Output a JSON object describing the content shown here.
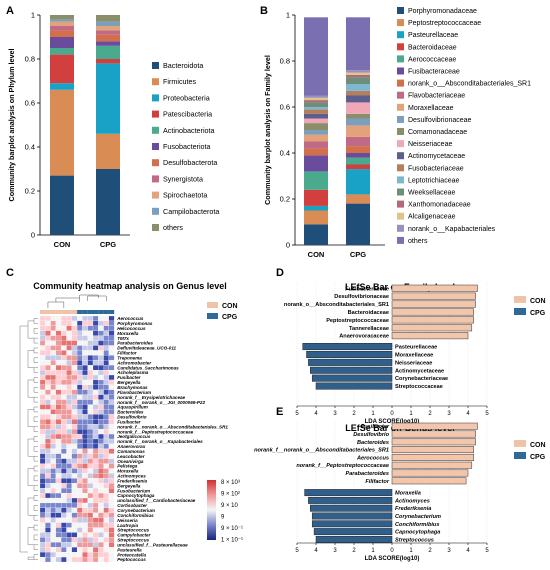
{
  "panels": {
    "a": "A",
    "b": "B",
    "c": "C",
    "d": "D",
    "e": "E"
  },
  "colors": {
    "Bacteroidota": "#1f4e79",
    "Firmicutes": "#d98c54",
    "Proteobacteria": "#1aa2c6",
    "Patescibacteria": "#d23f3f",
    "Actinobacteriota": "#4aaa8e",
    "Fusobacteriota": "#6a4b9c",
    "Desulfobacterota": "#d36f4a",
    "Synergistota": "#c06a88",
    "Spirochaetota": "#e2a27a",
    "Campilobacterota": "#7d9fbe",
    "others": "#8a8f6a",
    "lda_con": "#f3c6ac",
    "lda_cpg": "#2f5f8a",
    "legend_con": "#f0c2a6",
    "legend_cpg": "#2b6a9a"
  },
  "chart_data": [
    {
      "id": "A",
      "type": "bar",
      "ylabel": "Community barplot analysis on Phylum level",
      "categories": [
        "CON",
        "CPG"
      ],
      "ylim": [
        0,
        1
      ],
      "yticks": [
        "0",
        "0.2",
        "0.4",
        "0.6",
        "0.8",
        "1"
      ],
      "series": [
        {
          "name": "Bacteroidota",
          "values": [
            0.27,
            0.3
          ]
        },
        {
          "name": "Firmicutes",
          "values": [
            0.39,
            0.16
          ]
        },
        {
          "name": "Proteobacteria",
          "values": [
            0.03,
            0.32
          ]
        },
        {
          "name": "Patescibacteria",
          "values": [
            0.13,
            0.02
          ]
        },
        {
          "name": "Actinobacteriota",
          "values": [
            0.03,
            0.06
          ]
        },
        {
          "name": "Fusobacteriota",
          "values": [
            0.05,
            0.02
          ]
        },
        {
          "name": "Desulfobacterota",
          "values": [
            0.03,
            0.03
          ]
        },
        {
          "name": "Synergistota",
          "values": [
            0.02,
            0.02
          ]
        },
        {
          "name": "Spirochaetota",
          "values": [
            0.02,
            0.02
          ]
        },
        {
          "name": "Campilobacterota",
          "values": [
            0.01,
            0.02
          ]
        },
        {
          "name": "others",
          "values": [
            0.02,
            0.03
          ]
        }
      ]
    },
    {
      "id": "B",
      "type": "bar",
      "ylabel": "Community barplot analysis on Family level",
      "categories": [
        "CON",
        "CPG"
      ],
      "ylim": [
        0,
        1
      ],
      "yticks": [
        "0",
        "0.2",
        "0.4",
        "0.6",
        "0.8",
        "1"
      ],
      "series": [
        {
          "name": "Porphyromonadaceae",
          "values": [
            0.09,
            0.18
          ]
        },
        {
          "name": "Peptostreptococcaceae",
          "values": [
            0.06,
            0.04
          ]
        },
        {
          "name": "Pasteurellaceae",
          "values": [
            0.02,
            0.11
          ]
        },
        {
          "name": "Bacteroidaceae",
          "values": [
            0.07,
            0.02
          ]
        },
        {
          "name": "Aerococcaceae",
          "values": [
            0.08,
            0.03
          ]
        },
        {
          "name": "Fusibacteraceae",
          "values": [
            0.07,
            0.02
          ]
        },
        {
          "name": "norank_o__Absconditabacteriales_SR1",
          "values": [
            0.03,
            0.03
          ]
        },
        {
          "name": "Flavobacteriaceae",
          "values": [
            0.03,
            0.04
          ]
        },
        {
          "name": "Moraxellaceae",
          "values": [
            0.03,
            0.05
          ]
        },
        {
          "name": "Desulfovibrionaceae",
          "values": [
            0.02,
            0.03
          ]
        },
        {
          "name": "Comamonadaceae",
          "values": [
            0.03,
            0.02
          ]
        },
        {
          "name": "Neisseriaceae",
          "values": [
            0.02,
            0.05
          ]
        },
        {
          "name": "Actinomycetaceae",
          "values": [
            0.02,
            0.03
          ]
        },
        {
          "name": "Fusobacteriaceae",
          "values": [
            0.02,
            0.02
          ]
        },
        {
          "name": "Leptotrichiaceae",
          "values": [
            0.01,
            0.03
          ]
        },
        {
          "name": "Weeksellaceae",
          "values": [
            0.02,
            0.03
          ]
        },
        {
          "name": "Xanthomonadaceae",
          "values": [
            0.01,
            0.01
          ]
        },
        {
          "name": "Alcaligenaceae",
          "values": [
            0.01,
            0.01
          ]
        },
        {
          "name": "norank_o__Kapabacteriales",
          "values": [
            0.01,
            0.01
          ]
        },
        {
          "name": "others",
          "values": [
            0.34,
            0.23
          ]
        }
      ],
      "colors": [
        "#1f4e79",
        "#d98c54",
        "#1aa2c6",
        "#d23f3f",
        "#4aaa8e",
        "#6a4b9c",
        "#d36f4a",
        "#c06a88",
        "#e2a27a",
        "#7d9fbe",
        "#8a8f6a",
        "#f0a8b8",
        "#5d5d8e",
        "#b47f5c",
        "#7db8d0",
        "#6d8f7a",
        "#b06a7a",
        "#e0c58a",
        "#9a8fbe",
        "#7a6fb0"
      ]
    },
    {
      "id": "C",
      "type": "heatmap",
      "title": "Community heatmap analysis on Genus level",
      "groups": [
        "CON",
        "CPG"
      ],
      "scale_labels": [
        "8 × 10³",
        "9 × 10²",
        "9 × 10",
        "9",
        "9 × 10⁻¹",
        "1 × 10⁻¹"
      ],
      "rows": [
        "Aerococcus",
        "Porphyromonas",
        "Helcococcus",
        "Moraxella",
        "TM7x",
        "Parabacteroides",
        "Defluviitaleaceae_UCG-011",
        "Filifactor",
        "Treponema",
        "Achromobacter",
        "Candidatus_Saccharimonas",
        "Acholeplasma",
        "Fusibacter",
        "Bergeyella",
        "Brachymonas",
        "Flavobacterium",
        "norank_f__Erysipelotrichaceae",
        "norank_f__norank_o__JGI_0000069-P22",
        "Aquaspirillum",
        "Bacteroides",
        "Desulfovibrio",
        "Fusibacter",
        "norank_f__norank_o__Absconditabacteriales_SR1",
        "norank_f__Peptostreptococcaceae",
        "Jeotgalicoccus",
        "norank_f__norank_o__Kapabacteriales",
        "Anaerovorax",
        "Comamonas",
        "Leucobacter",
        "Oceanivirga",
        "Pelistega",
        "Moraxella",
        "Actinomyces",
        "Frederiksenia",
        "Bergeyella",
        "Fusobacterium",
        "Capnocytophaga",
        "unclassified_f__Cardiobacteriaceae",
        "Cortisobacter",
        "Corynebacterium",
        "Conchiformibius",
        "Neisseria",
        "Lautropia",
        "Streptococcus",
        "Campylobacter",
        "Streptococcus",
        "unclassified_f__Pasteurellaceae",
        "Pasteurella",
        "Proteocatella",
        "Peptococcus"
      ]
    },
    {
      "id": "D",
      "type": "bar",
      "title": "LEfSe Bar on Family level",
      "xlabel": "LDA SCORE(log10)",
      "xticks": [
        "5",
        "4",
        "3",
        "2",
        "1",
        "0",
        "1",
        "2",
        "3",
        "4",
        "5"
      ],
      "legend": [
        "CON",
        "CPG"
      ],
      "bars": [
        {
          "name": "Fusibacteraceae",
          "group": "CON",
          "value": 4.5
        },
        {
          "name": "Desulfovibrionaceae",
          "group": "CON",
          "value": 4.4
        },
        {
          "name": "norank_o__Absconditabacteriales_SR1",
          "group": "CON",
          "value": 4.4
        },
        {
          "name": "Bacteroidaceae",
          "group": "CON",
          "value": 4.3
        },
        {
          "name": "Peptostreptococcaceae",
          "group": "CON",
          "value": 4.3
        },
        {
          "name": "Tannerellaceae",
          "group": "CON",
          "value": 4.2
        },
        {
          "name": "Anaerovoracaceae",
          "group": "CON",
          "value": 4.0
        },
        {
          "name": "Pasteurellaceae",
          "group": "CPG",
          "value": 4.7
        },
        {
          "name": "Moraxellaceae",
          "group": "CPG",
          "value": 4.5
        },
        {
          "name": "Neisseriaceae",
          "group": "CPG",
          "value": 4.4
        },
        {
          "name": "Actinomycetaceae",
          "group": "CPG",
          "value": 4.3
        },
        {
          "name": "Corynebacteriaceae",
          "group": "CPG",
          "value": 4.2
        },
        {
          "name": "Streptococcaceae",
          "group": "CPG",
          "value": 4.0
        }
      ]
    },
    {
      "id": "E",
      "type": "bar",
      "title": "LEfSe Bar on Genus level",
      "xlabel": "LDA SCORE(log10)",
      "xticks": [
        "5",
        "4",
        "3",
        "2",
        "1",
        "0",
        "1",
        "2",
        "3",
        "4",
        "5"
      ],
      "legend": [
        "CON",
        "CPG"
      ],
      "bars": [
        {
          "name": "Fusibacter",
          "group": "CON",
          "value": 4.5
        },
        {
          "name": "Desulfovibrio",
          "group": "CON",
          "value": 4.4
        },
        {
          "name": "Bacteroides",
          "group": "CON",
          "value": 4.4
        },
        {
          "name": "norank_f__norank_o__Absconditabacteriales_SR1",
          "group": "CON",
          "value": 4.3
        },
        {
          "name": "Aerococcus",
          "group": "CON",
          "value": 4.3
        },
        {
          "name": "norank_f__Peptostreptococcaceae",
          "group": "CON",
          "value": 4.2
        },
        {
          "name": "Parabacteroides",
          "group": "CON",
          "value": 4.0
        },
        {
          "name": "Filifactor",
          "group": "CON",
          "value": 3.9
        },
        {
          "name": "Moraxella",
          "group": "CPG",
          "value": 4.6
        },
        {
          "name": "Actinomyces",
          "group": "CPG",
          "value": 4.4
        },
        {
          "name": "Frederiksenia",
          "group": "CPG",
          "value": 4.3
        },
        {
          "name": "Corynebacterium",
          "group": "CPG",
          "value": 4.2
        },
        {
          "name": "Conchiformibius",
          "group": "CPG",
          "value": 4.2
        },
        {
          "name": "Capnocytophaga",
          "group": "CPG",
          "value": 4.1
        },
        {
          "name": "Streptococcus",
          "group": "CPG",
          "value": 4.0
        }
      ]
    }
  ]
}
